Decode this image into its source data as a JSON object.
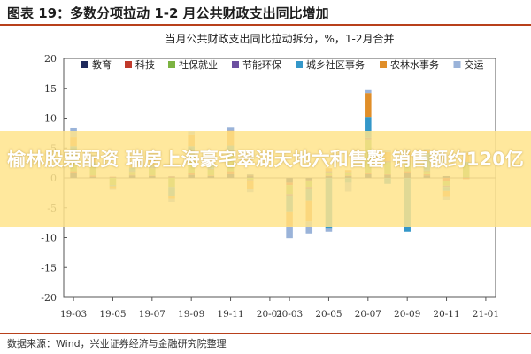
{
  "header": {
    "title": "图表 19：多数分项拉动 1-2 月公共财政支出同比增加"
  },
  "source": "数据来源：Wind，兴业证券经济与金融研究院整理",
  "banner": {
    "text": "榆林股票配资 瑞房上海豪宅翠湖天地六和售罄 销售额约120亿"
  },
  "chart_data": {
    "type": "bar",
    "stacked": true,
    "title": "当月公共财政支出同比拉动拆分，%，1-2月合并",
    "xlabel": "",
    "ylabel": "",
    "ylim": [
      -20,
      20
    ],
    "yticks": [
      -20,
      -15,
      -10,
      -5,
      0,
      5,
      10,
      15,
      20
    ],
    "legend_position": "top",
    "categories": [
      "19-03",
      "19-04",
      "19-05",
      "19-06",
      "19-07",
      "19-08",
      "19-09",
      "19-10",
      "19-11",
      "19-12",
      "20-01",
      "20-03",
      "20-04",
      "20-05",
      "20-06",
      "20-07",
      "20-08",
      "20-09",
      "20-10",
      "20-11",
      "20-12",
      "21-01"
    ],
    "x_tick_labels": [
      "19-03",
      "19-05",
      "19-07",
      "19-09",
      "19-11",
      "20-01",
      "20-03",
      "20-05",
      "20-07",
      "20-09",
      "20-11",
      "21-01"
    ],
    "series": [
      {
        "name": "教育",
        "color": "#1f2a5c",
        "values": [
          0.8,
          0.2,
          0.1,
          0.4,
          0.3,
          0.1,
          0.5,
          0.3,
          0.6,
          0.4,
          0.0,
          -0.8,
          -0.4,
          0.3,
          0.3,
          0.6,
          0.5,
          0.8,
          0.4,
          0.3,
          0.1,
          0.0
        ]
      },
      {
        "name": "科技",
        "color": "#c0392b",
        "values": [
          0.3,
          0.2,
          0.1,
          0.1,
          0.1,
          0.1,
          0.3,
          0.1,
          0.5,
          0.1,
          0.0,
          -0.4,
          -0.1,
          0.1,
          0.1,
          0.3,
          0.1,
          0.3,
          0.2,
          -0.5,
          -0.2,
          0.0
        ]
      },
      {
        "name": "社保就业",
        "color": "#7cb342",
        "values": [
          3.0,
          1.5,
          -1.2,
          0.5,
          1.2,
          -1.5,
          3.5,
          1.0,
          3.0,
          -0.3,
          0.0,
          -1.5,
          -1.0,
          0.5,
          0.5,
          5.5,
          2.0,
          1.5,
          0.5,
          -0.8,
          2.0,
          0.0
        ]
      },
      {
        "name": "节能环保",
        "color": "#6c4fa0",
        "values": [
          0.2,
          0.2,
          0.0,
          0.1,
          0.1,
          0.1,
          0.2,
          0.1,
          0.3,
          -0.1,
          0.0,
          -0.4,
          -0.3,
          0.2,
          0.1,
          0.3,
          0.2,
          0.2,
          0.1,
          -0.2,
          0.1,
          0.0
        ]
      },
      {
        "name": "城乡社区事务",
        "color": "#3497c9",
        "values": [
          1.0,
          0.5,
          -0.2,
          0.6,
          0.3,
          -1.5,
          0.8,
          0.7,
          1.0,
          0.1,
          0.0,
          -2.5,
          -2.0,
          -8.5,
          -0.8,
          3.5,
          -1.0,
          -9.0,
          3.0,
          -0.7,
          0.5,
          0.0
        ]
      },
      {
        "name": "农林水事务",
        "color": "#e08e29",
        "values": [
          1.5,
          0.8,
          -0.3,
          0.4,
          1.0,
          -0.5,
          2.0,
          1.2,
          2.5,
          -1.5,
          0.0,
          -2.5,
          -3.5,
          0.5,
          0.3,
          4.0,
          1.5,
          1.5,
          0.5,
          -1.0,
          1.5,
          0.0
        ]
      },
      {
        "name": "交运",
        "color": "#9ab3d9",
        "values": [
          1.5,
          0.5,
          -0.3,
          0.3,
          0.5,
          -0.5,
          0.5,
          0.3,
          0.5,
          -0.5,
          0.0,
          -2.0,
          -2.0,
          -0.5,
          -1.5,
          0.5,
          0.3,
          0.5,
          0.2,
          -0.5,
          0.2,
          0.0
        ]
      }
    ]
  }
}
